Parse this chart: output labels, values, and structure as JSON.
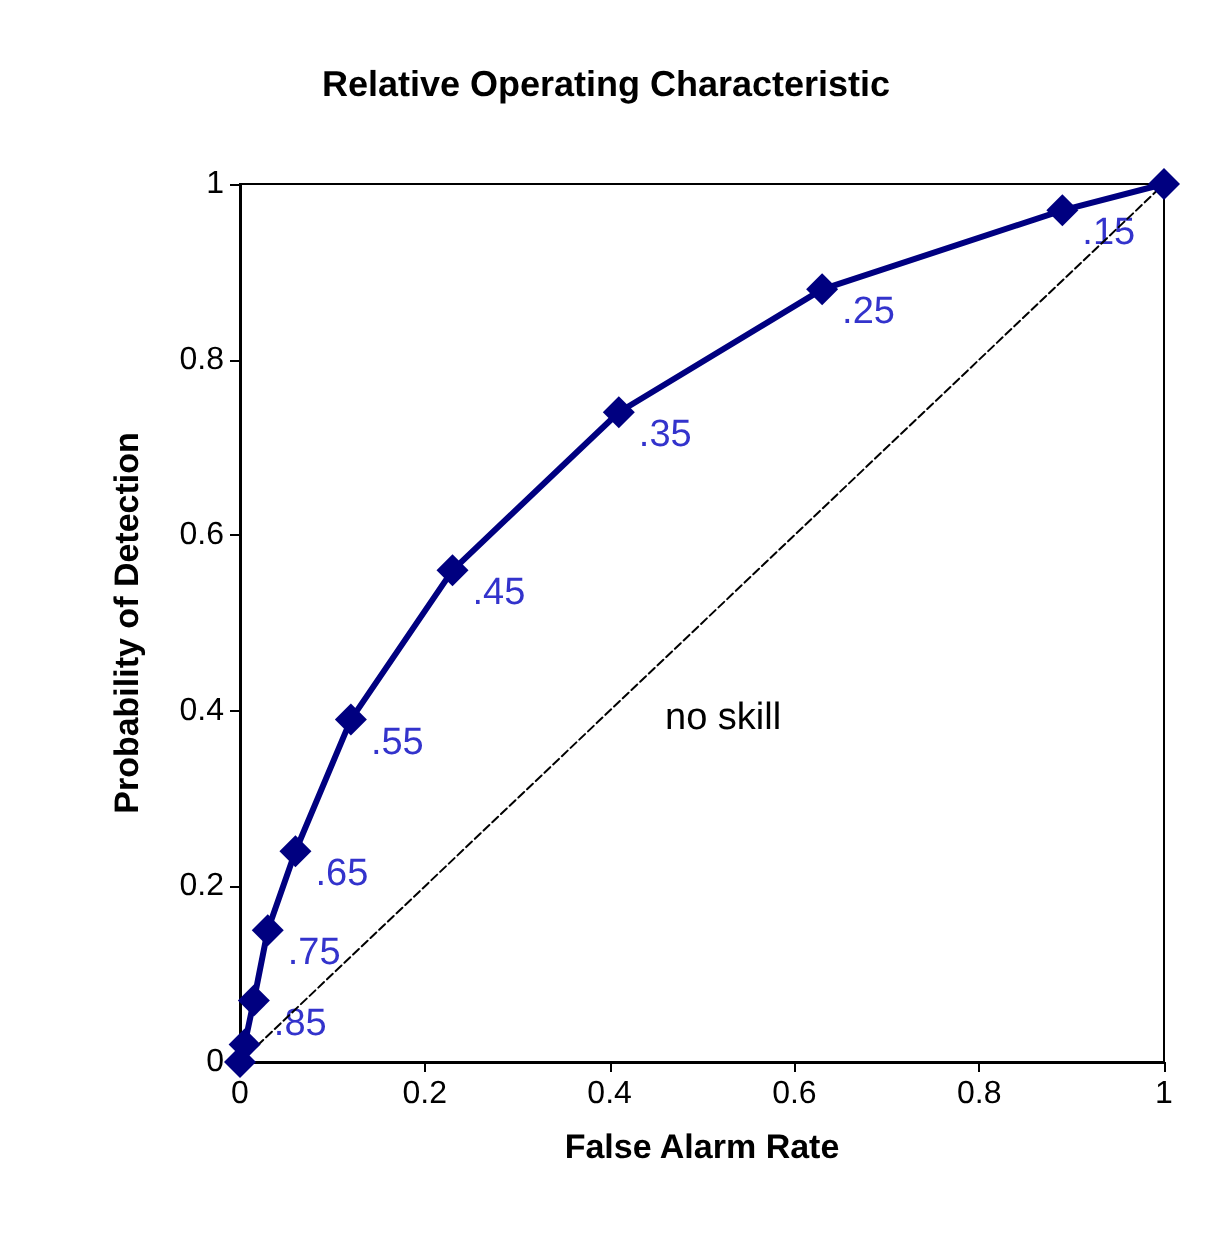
{
  "chart_data": {
    "type": "line",
    "title": "Relative Operating Characteristic",
    "xlabel": "False Alarm Rate",
    "ylabel": "Probability of Detection",
    "series": [
      {
        "color": "#000080",
        "x": [
          0,
          0.005,
          0.015,
          0.03,
          0.06,
          0.12,
          0.23,
          0.41,
          0.63,
          0.89,
          1
        ],
        "values": [
          0,
          0.02,
          0.07,
          0.15,
          0.24,
          0.39,
          0.56,
          0.74,
          0.88,
          0.97,
          1
        ],
        "marker": "diamond",
        "line_style": "solid"
      },
      {
        "color": "#000000",
        "x": [
          0,
          1
        ],
        "values": [
          0,
          1
        ],
        "marker": "none",
        "line_style": "dashed"
      }
    ],
    "annotations": [
      {
        "text": ".85",
        "x": 0.015,
        "y": 0.07
      },
      {
        "text": ".75",
        "x": 0.03,
        "y": 0.15
      },
      {
        "text": ".65",
        "x": 0.06,
        "y": 0.24
      },
      {
        "text": ".55",
        "x": 0.12,
        "y": 0.39
      },
      {
        "text": ".45",
        "x": 0.23,
        "y": 0.56
      },
      {
        "text": ".35",
        "x": 0.41,
        "y": 0.74
      },
      {
        "text": ".25",
        "x": 0.63,
        "y": 0.88
      },
      {
        "text": ".15",
        "x": 0.89,
        "y": 0.97
      },
      "no skill"
    ],
    "xlim": [
      0,
      1
    ],
    "ylim": [
      0,
      1
    ],
    "xticks": [
      0,
      0.2,
      0.4,
      0.6,
      0.8,
      1
    ],
    "yticks": [
      0,
      0.2,
      0.4,
      0.6,
      0.8,
      1
    ],
    "grid": false
  }
}
